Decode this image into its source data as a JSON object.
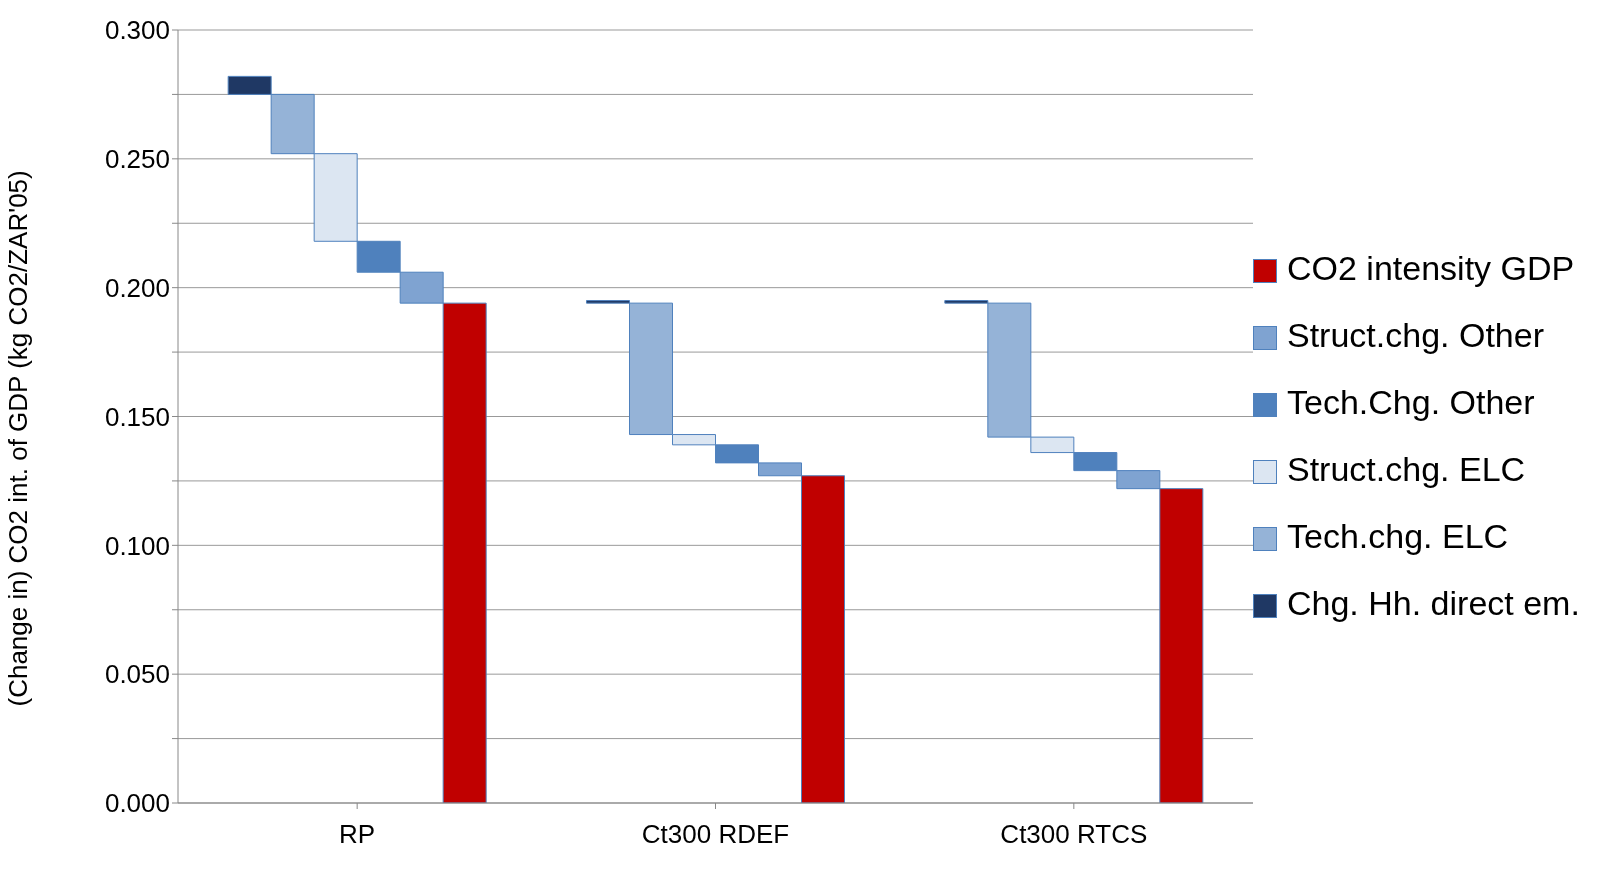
{
  "chart_data": {
    "type": "bar",
    "ylabel": "(Change in) CO2 int. of GDP (kg CO2/ZAR'05)",
    "categories": [
      "RP",
      "Ct300 RDEF",
      "Ct300 RTCS"
    ],
    "series": [
      {
        "name": "Chg. Hh. direct em.",
        "color": "#1f3864",
        "base": [
          0.282,
          0.195,
          0.195
        ],
        "values": [
          -0.007,
          -0.001,
          -0.001
        ]
      },
      {
        "name": "Tech.chg. ELC",
        "color": "#95b3d7",
        "base": [
          0.275,
          0.194,
          0.194
        ],
        "values": [
          -0.023,
          -0.051,
          -0.052
        ]
      },
      {
        "name": "Struct.chg. ELC",
        "color": "#dce6f2",
        "base": [
          0.252,
          0.143,
          0.142
        ],
        "values": [
          -0.034,
          -0.004,
          -0.006
        ]
      },
      {
        "name": "Tech.Chg. Other",
        "color": "#4f81bd",
        "base": [
          0.218,
          0.139,
          0.136
        ],
        "values": [
          -0.012,
          -0.007,
          -0.007
        ]
      },
      {
        "name": "Struct.chg. Other",
        "color": "#7fa3d1",
        "base": [
          0.206,
          0.132,
          0.129
        ],
        "values": [
          -0.012,
          -0.005,
          -0.007
        ]
      },
      {
        "name": "CO2 intensity GDP",
        "color": "#c00000",
        "base": [
          0,
          0,
          0
        ],
        "values": [
          0.194,
          0.127,
          0.122
        ]
      }
    ],
    "ylim": [
      0,
      0.3
    ],
    "yticks": [
      {
        "value": 0,
        "label": "0.000"
      },
      {
        "value": 0.025,
        "label": null
      },
      {
        "value": 0.05,
        "label": "0.050"
      },
      {
        "value": 0.075,
        "label": null
      },
      {
        "value": 0.1,
        "label": "0.100"
      },
      {
        "value": 0.125,
        "label": null
      },
      {
        "value": 0.15,
        "label": "0.150"
      },
      {
        "value": 0.175,
        "label": null
      },
      {
        "value": 0.2,
        "label": "0.200"
      },
      {
        "value": 0.225,
        "label": null
      },
      {
        "value": 0.25,
        "label": "0.250"
      },
      {
        "value": 0.275,
        "label": null
      },
      {
        "value": 0.3,
        "label": "0.300"
      }
    ],
    "grid": "y",
    "legend": "right"
  }
}
